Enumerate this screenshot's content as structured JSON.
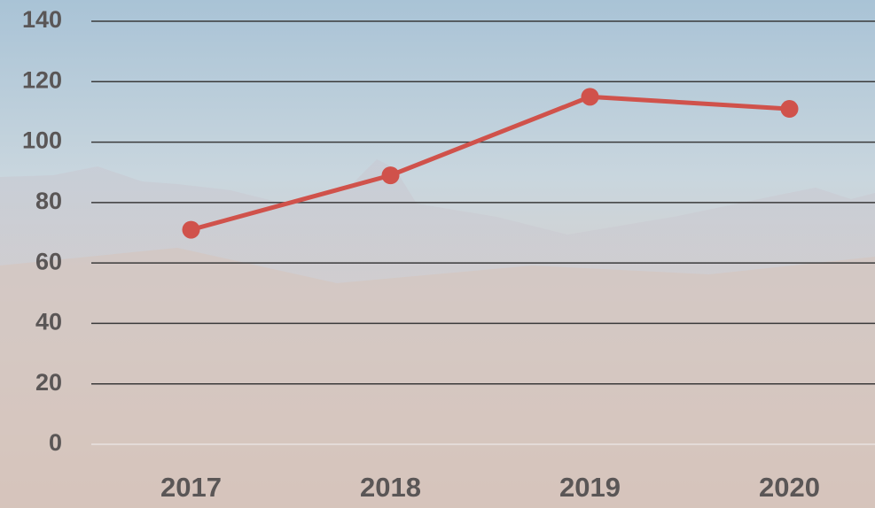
{
  "chart_data": {
    "type": "line",
    "categories": [
      "2017",
      "2018",
      "2019",
      "2020"
    ],
    "values": [
      71,
      89,
      115,
      111
    ],
    "color": "#d0524b",
    "ylim": [
      0,
      140
    ],
    "yticks": [
      0,
      20,
      40,
      60,
      80,
      100,
      120,
      140
    ],
    "grid": true
  }
}
